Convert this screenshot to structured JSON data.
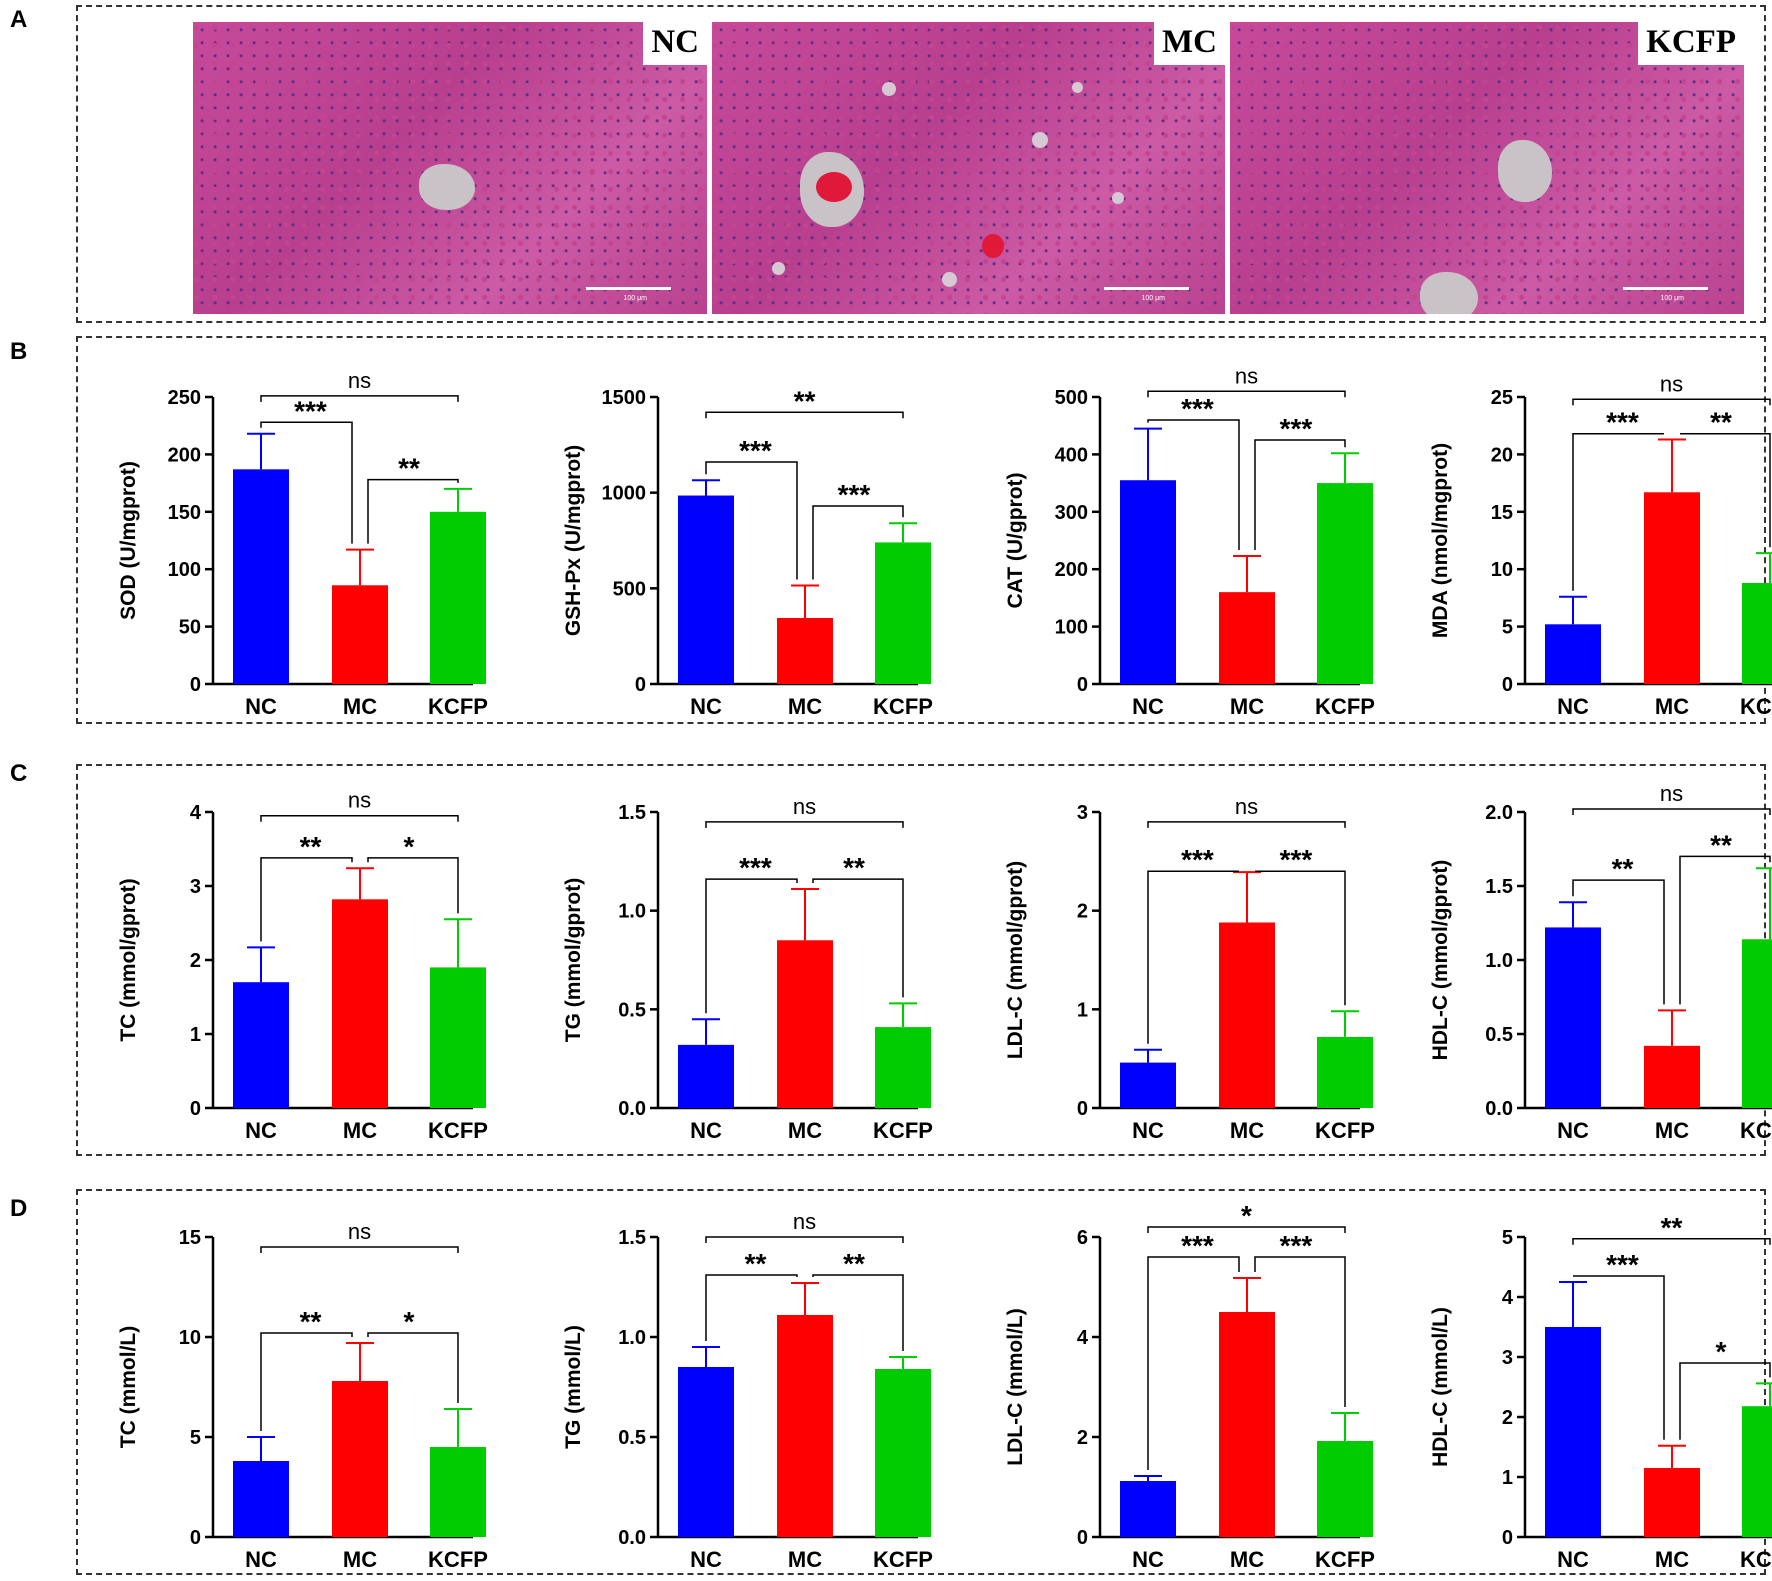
{
  "panels": {
    "A": "A",
    "B": "B",
    "C": "C",
    "D": "D"
  },
  "micrographs": [
    {
      "label": "NC",
      "scale": "100 μm"
    },
    {
      "label": "MC",
      "scale": "100 μm"
    },
    {
      "label": "KCFP",
      "scale": "100 μm"
    }
  ],
  "colors": {
    "NC": "#0000ff",
    "MC": "#ff0000",
    "KCFP": "#00cc00"
  },
  "chart_data": [
    {
      "panel": "B",
      "type": "bar",
      "ylabel": "SOD (U/mgprot)",
      "categories": [
        "NC",
        "MC",
        "KCFP"
      ],
      "values": [
        187,
        86,
        150
      ],
      "errors": [
        31,
        31,
        20
      ],
      "ylim": [
        0,
        250
      ],
      "ticks": [
        0,
        50,
        100,
        150,
        200,
        250
      ],
      "tick_labels": [
        "0",
        "50",
        "100",
        "150",
        "200",
        "250"
      ],
      "sig": [
        {
          "a": 0,
          "b": 1,
          "y": 228,
          "label": "***"
        },
        {
          "a": 1,
          "b": 2,
          "y": 178,
          "label": "**"
        },
        {
          "a": 0,
          "b": 2,
          "y": 251,
          "label": "ns"
        }
      ]
    },
    {
      "panel": "B",
      "type": "bar",
      "ylabel": "GSH-Px (U/mgprot)",
      "categories": [
        "NC",
        "MC",
        "KCFP"
      ],
      "values": [
        985,
        345,
        740
      ],
      "errors": [
        80,
        170,
        100
      ],
      "ylim": [
        0,
        1500
      ],
      "ticks": [
        0,
        500,
        1000,
        1500
      ],
      "tick_labels": [
        "0",
        "500",
        "1000",
        "1500"
      ],
      "sig": [
        {
          "a": 0,
          "b": 1,
          "y": 1160,
          "label": "***"
        },
        {
          "a": 1,
          "b": 2,
          "y": 930,
          "label": "***"
        },
        {
          "a": 0,
          "b": 2,
          "y": 1420,
          "label": "**"
        }
      ]
    },
    {
      "panel": "B",
      "type": "bar",
      "ylabel": "CAT (U/gprot)",
      "categories": [
        "NC",
        "MC",
        "KCFP"
      ],
      "values": [
        355,
        160,
        350
      ],
      "errors": [
        90,
        63,
        52
      ],
      "ylim": [
        0,
        500
      ],
      "ticks": [
        0,
        100,
        200,
        300,
        400,
        500
      ],
      "tick_labels": [
        "0",
        "100",
        "200",
        "300",
        "400",
        "500"
      ],
      "sig": [
        {
          "a": 0,
          "b": 1,
          "y": 460,
          "label": "***"
        },
        {
          "a": 1,
          "b": 2,
          "y": 425,
          "label": "***"
        },
        {
          "a": 0,
          "b": 2,
          "y": 510,
          "label": "ns"
        }
      ]
    },
    {
      "panel": "B",
      "type": "bar",
      "ylabel": "MDA (nmol/mgprot)",
      "categories": [
        "NC",
        "MC",
        "KCFP"
      ],
      "values": [
        5.2,
        16.7,
        8.8
      ],
      "errors": [
        2.4,
        4.6,
        2.6
      ],
      "ylim": [
        0,
        25
      ],
      "ticks": [
        0,
        5,
        10,
        15,
        20,
        25
      ],
      "tick_labels": [
        "0",
        "5",
        "10",
        "15",
        "20",
        "25"
      ],
      "sig": [
        {
          "a": 0,
          "b": 1,
          "y": 21.8,
          "label": "***"
        },
        {
          "a": 1,
          "b": 2,
          "y": 21.8,
          "label": "**"
        },
        {
          "a": 0,
          "b": 2,
          "y": 24.8,
          "label": "ns"
        }
      ]
    },
    {
      "panel": "C",
      "type": "bar",
      "ylabel": "TC (mmol/gprot)",
      "categories": [
        "NC",
        "MC",
        "KCFP"
      ],
      "values": [
        1.7,
        2.82,
        1.9
      ],
      "errors": [
        0.47,
        0.42,
        0.65
      ],
      "ylim": [
        0,
        4
      ],
      "ticks": [
        0,
        1,
        2,
        3,
        4
      ],
      "tick_labels": [
        "0",
        "1",
        "2",
        "3",
        "4"
      ],
      "sig": [
        {
          "a": 0,
          "b": 1,
          "y": 3.38,
          "label": "**"
        },
        {
          "a": 1,
          "b": 2,
          "y": 3.38,
          "label": "*"
        },
        {
          "a": 0,
          "b": 2,
          "y": 3.95,
          "label": "ns"
        }
      ]
    },
    {
      "panel": "C",
      "type": "bar",
      "ylabel": "TG (mmol/gprot)",
      "categories": [
        "NC",
        "MC",
        "KCFP"
      ],
      "values": [
        0.32,
        0.85,
        0.41
      ],
      "errors": [
        0.13,
        0.26,
        0.12
      ],
      "ylim": [
        0,
        1.5
      ],
      "ticks": [
        0,
        0.5,
        1,
        1.5
      ],
      "tick_labels": [
        "0.0",
        "0.5",
        "1.0",
        "1.5"
      ],
      "sig": [
        {
          "a": 0,
          "b": 1,
          "y": 1.16,
          "label": "***"
        },
        {
          "a": 1,
          "b": 2,
          "y": 1.16,
          "label": "**"
        },
        {
          "a": 0,
          "b": 2,
          "y": 1.45,
          "label": "ns"
        }
      ]
    },
    {
      "panel": "C",
      "type": "bar",
      "ylabel": "LDL-C (mmol/gprot)",
      "categories": [
        "NC",
        "MC",
        "KCFP"
      ],
      "values": [
        0.46,
        1.88,
        0.72
      ],
      "errors": [
        0.13,
        0.51,
        0.26
      ],
      "ylim": [
        0,
        3
      ],
      "ticks": [
        0,
        1,
        2,
        3
      ],
      "tick_labels": [
        "0",
        "1",
        "2",
        "3"
      ],
      "sig": [
        {
          "a": 0,
          "b": 1,
          "y": 2.4,
          "label": "***"
        },
        {
          "a": 1,
          "b": 2,
          "y": 2.4,
          "label": "***"
        },
        {
          "a": 0,
          "b": 2,
          "y": 2.9,
          "label": "ns"
        }
      ]
    },
    {
      "panel": "C",
      "type": "bar",
      "ylabel": "HDL-C (mmol/gprot)",
      "categories": [
        "NC",
        "MC",
        "KCFP"
      ],
      "values": [
        1.22,
        0.42,
        1.14
      ],
      "errors": [
        0.17,
        0.24,
        0.48
      ],
      "ylim": [
        0,
        2
      ],
      "ticks": [
        0,
        0.5,
        1,
        1.5,
        2
      ],
      "tick_labels": [
        "0.0",
        "0.5",
        "1.0",
        "1.5",
        "2.0"
      ],
      "sig": [
        {
          "a": 0,
          "b": 1,
          "y": 1.54,
          "label": "**"
        },
        {
          "a": 1,
          "b": 2,
          "y": 1.7,
          "label": "**"
        },
        {
          "a": 0,
          "b": 2,
          "y": 2.02,
          "label": "ns"
        }
      ]
    },
    {
      "panel": "D",
      "type": "bar",
      "ylabel": "TC (mmol/L)",
      "categories": [
        "NC",
        "MC",
        "KCFP"
      ],
      "values": [
        3.8,
        7.8,
        4.5
      ],
      "errors": [
        1.2,
        1.9,
        1.9
      ],
      "ylim": [
        0,
        15
      ],
      "ticks": [
        0,
        5,
        10,
        15
      ],
      "tick_labels": [
        "0",
        "5",
        "10",
        "15"
      ],
      "sig": [
        {
          "a": 0,
          "b": 1,
          "y": 10.2,
          "label": "**"
        },
        {
          "a": 1,
          "b": 2,
          "y": 10.2,
          "label": "*"
        },
        {
          "a": 0,
          "b": 2,
          "y": 14.5,
          "label": "ns"
        }
      ]
    },
    {
      "panel": "D",
      "type": "bar",
      "ylabel": "TG (mmol/L)",
      "categories": [
        "NC",
        "MC",
        "KCFP"
      ],
      "values": [
        0.85,
        1.11,
        0.84
      ],
      "errors": [
        0.1,
        0.16,
        0.06
      ],
      "ylim": [
        0,
        1.5
      ],
      "ticks": [
        0,
        0.5,
        1,
        1.5
      ],
      "tick_labels": [
        "0.0",
        "0.5",
        "1.0",
        "1.5"
      ],
      "sig": [
        {
          "a": 0,
          "b": 1,
          "y": 1.31,
          "label": "**"
        },
        {
          "a": 1,
          "b": 2,
          "y": 1.31,
          "label": "**"
        },
        {
          "a": 0,
          "b": 2,
          "y": 1.5,
          "label": "ns"
        }
      ]
    },
    {
      "panel": "D",
      "type": "bar",
      "ylabel": "LDL-C (mmol/L)",
      "categories": [
        "NC",
        "MC",
        "KCFP"
      ],
      "values": [
        1.12,
        4.5,
        1.92
      ],
      "errors": [
        0.1,
        0.68,
        0.56
      ],
      "ylim": [
        0,
        6
      ],
      "ticks": [
        0,
        2,
        4,
        6
      ],
      "tick_labels": [
        "0",
        "2",
        "4",
        "6"
      ],
      "sig": [
        {
          "a": 0,
          "b": 1,
          "y": 5.6,
          "label": "***"
        },
        {
          "a": 1,
          "b": 2,
          "y": 5.6,
          "label": "***"
        },
        {
          "a": 0,
          "b": 2,
          "y": 6.2,
          "label": "*"
        }
      ]
    },
    {
      "panel": "D",
      "type": "bar",
      "ylabel": "HDL-C (mmol/L)",
      "categories": [
        "NC",
        "MC",
        "KCFP"
      ],
      "values": [
        3.5,
        1.15,
        2.18
      ],
      "errors": [
        0.75,
        0.37,
        0.38
      ],
      "ylim": [
        0,
        5
      ],
      "ticks": [
        0,
        1,
        2,
        3,
        4,
        5
      ],
      "tick_labels": [
        "0",
        "1",
        "2",
        "3",
        "4",
        "5"
      ],
      "sig": [
        {
          "a": 0,
          "b": 1,
          "y": 4.35,
          "label": "***"
        },
        {
          "a": 1,
          "b": 2,
          "y": 2.9,
          "label": "*"
        },
        {
          "a": 0,
          "b": 2,
          "y": 4.97,
          "label": "**"
        }
      ]
    }
  ]
}
